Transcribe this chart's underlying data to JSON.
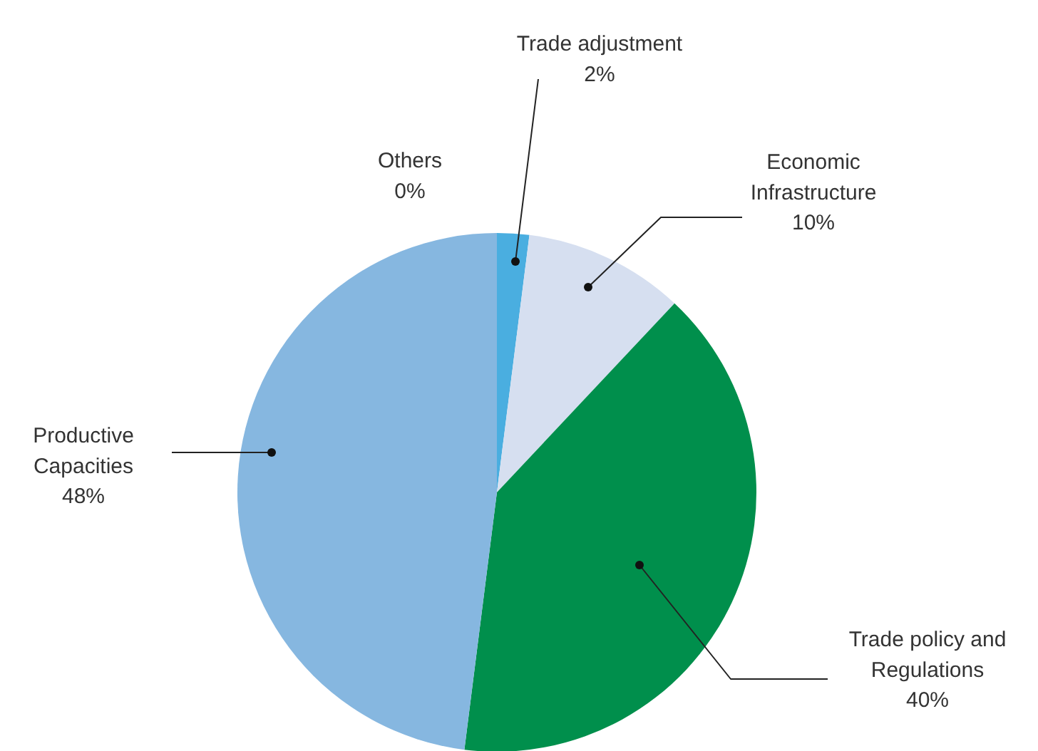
{
  "chart_data": {
    "type": "pie",
    "categories": [
      "Trade adjustment",
      "Economic Infrastructure",
      "Trade policy and Regulations",
      "Productive Capacities",
      "Others"
    ],
    "values": [
      2,
      10,
      40,
      48,
      0
    ],
    "colors": [
      "#4aaee0",
      "#d6dff0",
      "#008f4c",
      "#86b7e0",
      "#7f7f7f"
    ],
    "value_labels": [
      "2%",
      "10%",
      "40%",
      "48%",
      "0%"
    ]
  }
}
